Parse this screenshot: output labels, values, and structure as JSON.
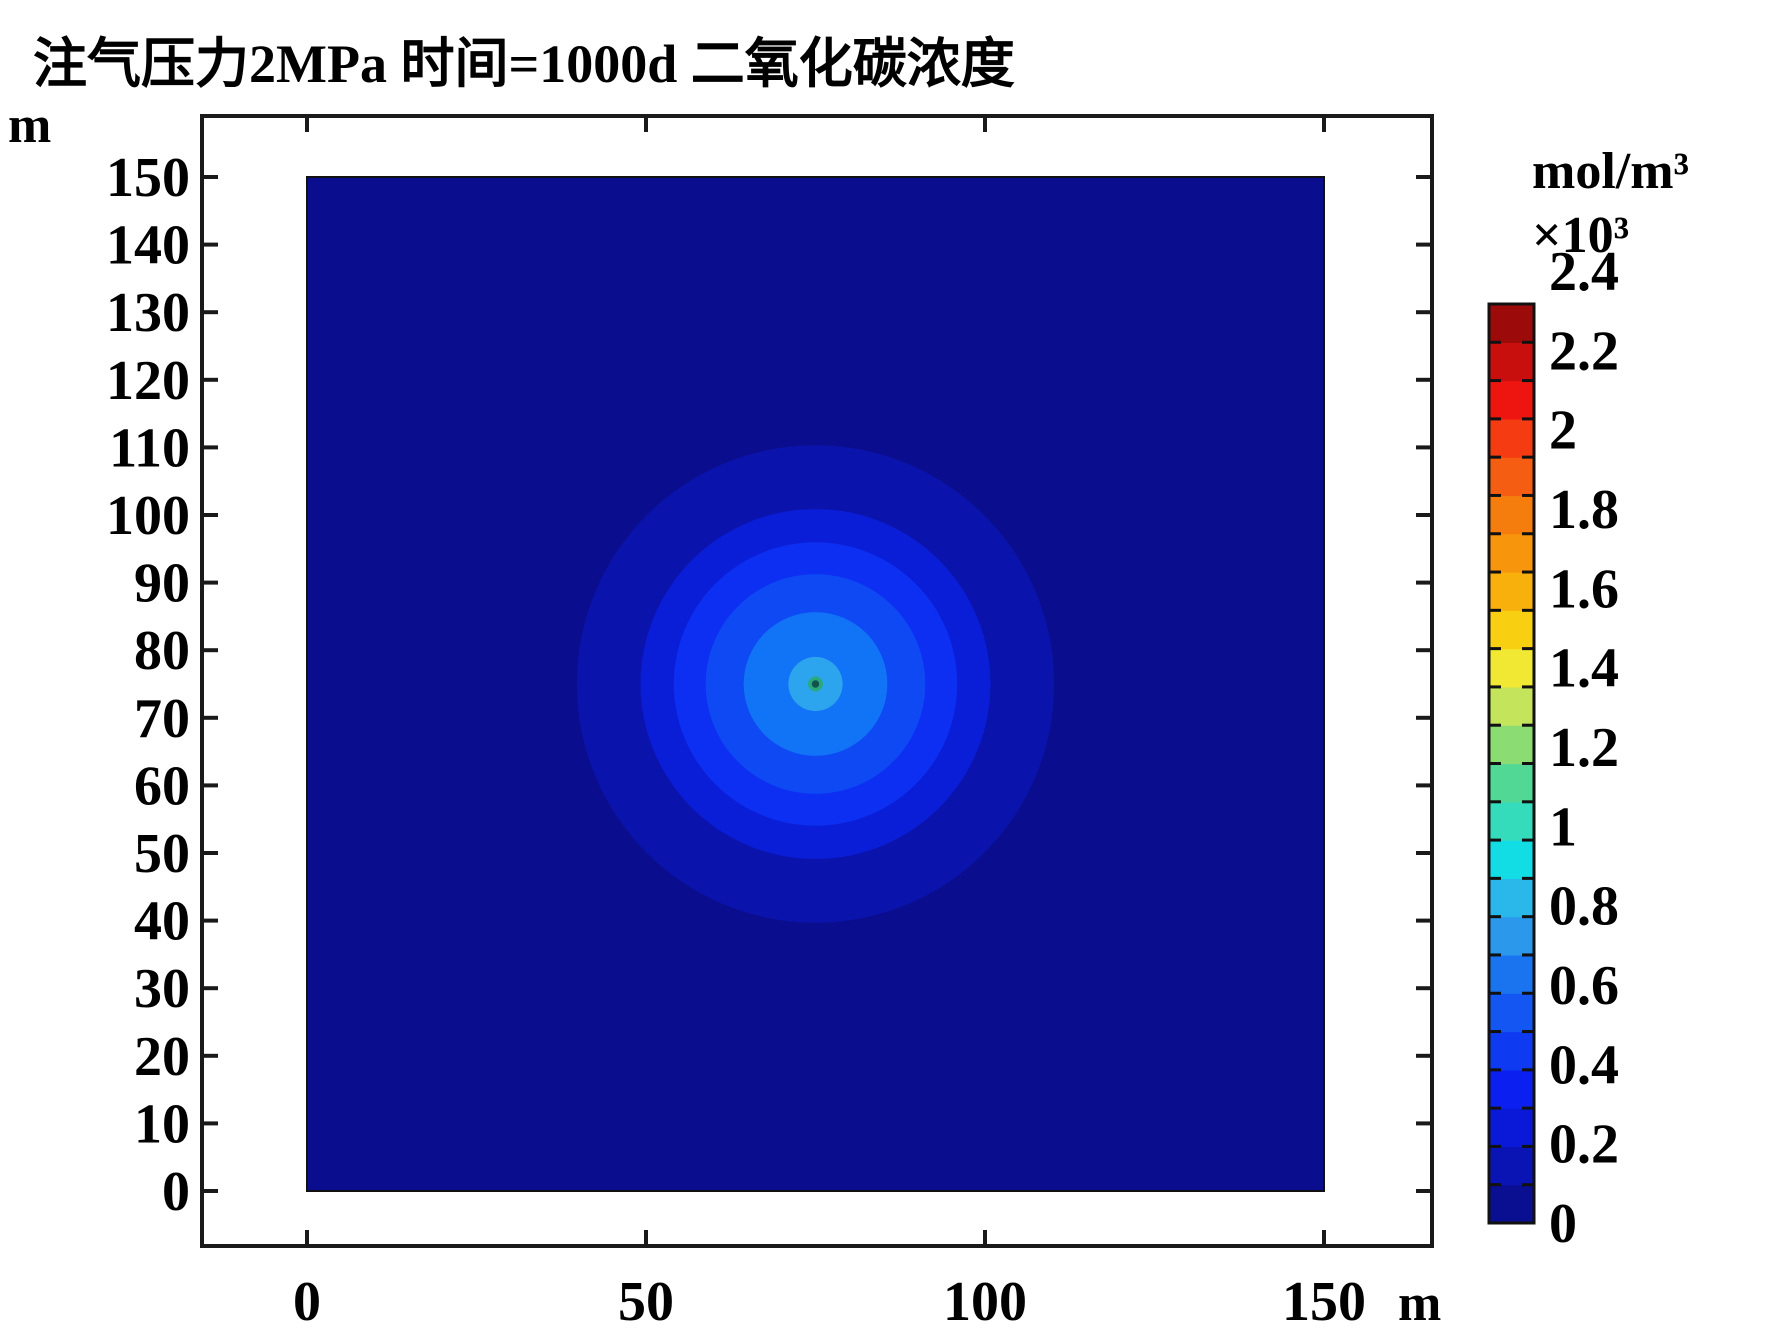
{
  "title": "注气压力2MPa 时间=1000d 二氧化碳浓度",
  "chart_data": {
    "type": "heatmap",
    "subtype": "filled-contour-map",
    "field_name": "二氧化碳浓度",
    "injection_pressure": "2MPa",
    "time": "1000d",
    "x_unit": "m",
    "y_unit": "m",
    "xlim": [
      0,
      150
    ],
    "ylim": [
      0,
      150
    ],
    "x_tick_labels": [
      "0",
      "50",
      "100",
      "150"
    ],
    "y_tick_labels": [
      "150",
      "140",
      "130",
      "120",
      "110",
      "100",
      "90",
      "80",
      "70",
      "60",
      "50",
      "40",
      "30",
      "20",
      "10",
      "0"
    ],
    "minor_axis_tick_step_m": 10,
    "grid": false,
    "background_color": "#0a0e8e",
    "injection_center": {
      "x_m": 75,
      "y_m": 75
    },
    "contours": [
      {
        "radius_m": 35.2,
        "color": "#0a14ad",
        "band_x10e3": "0.1-0.2"
      },
      {
        "radius_m": 25.8,
        "color": "#0a1ed8",
        "band_x10e3": "0.2-0.3"
      },
      {
        "radius_m": 20.9,
        "color": "#0c2ff1",
        "band_x10e3": "0.3-0.4"
      },
      {
        "radius_m": 16.2,
        "color": "#0e49f4",
        "band_x10e3": "0.4-0.5"
      },
      {
        "radius_m": 10.6,
        "color": "#1173f5",
        "band_x10e3": "0.5-0.6"
      },
      {
        "radius_m": 4.0,
        "color": "#2da4ee",
        "band_x10e3": "0.7-0.8"
      },
      {
        "radius_m": 1.1,
        "color": "#2aa87e",
        "band_x10e3": "~1.0"
      },
      {
        "radius_m": 0.55,
        "color": "#14524e",
        "band_x10e3": "~1.2"
      }
    ],
    "colorbar": {
      "unit_line1": "mol/m³",
      "unit_line2": "×10³",
      "tick_labels": [
        "0",
        "0.2",
        "0.4",
        "0.6",
        "0.8",
        "1",
        "1.2",
        "1.4",
        "1.6",
        "1.8",
        "2",
        "2.2",
        "2.4"
      ],
      "value_min": 0,
      "value_max": 2.4,
      "segment_colors_bottom_to_top": [
        "#0a0e90",
        "#0a13b4",
        "#0a18d8",
        "#0b20f0",
        "#0e3af2",
        "#1356f2",
        "#1a74f0",
        "#2b98ec",
        "#2ab7e9",
        "#12dce4",
        "#35dcbc",
        "#50d894",
        "#8bdc72",
        "#c4e45c",
        "#f0e832",
        "#f9cf12",
        "#f8b10c",
        "#f7960d",
        "#f57d0e",
        "#f55e12",
        "#f43b12",
        "#ee1510",
        "#c90e0e",
        "#9c0a0a"
      ]
    }
  }
}
